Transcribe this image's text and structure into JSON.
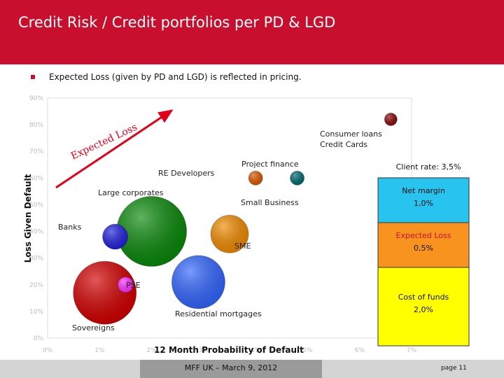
{
  "header": {
    "title": "Credit Risk / Credit portfolios per PD & LGD"
  },
  "bullet": "Expected Loss (given by PD and LGD) is reflected in pricing.",
  "footer": {
    "text": "MFF UK – March 9, 2012",
    "page": "page 11"
  },
  "colors": {
    "brand": "#c8102e",
    "net_margin": "#29c3f0",
    "expected_loss": "#f7931e",
    "cost_of_funds": "#ffff00"
  },
  "chart_data": {
    "type": "scatter",
    "xlabel": "12 Month Probability of Default",
    "ylabel": "Loss Given Default",
    "x_ticks": [
      "0%",
      "1%",
      "2%",
      "3%",
      "4%",
      "5%",
      "6%",
      "7%"
    ],
    "y_ticks": [
      "0%",
      "10%",
      "20%",
      "30%",
      "40%",
      "50%",
      "60%",
      "70%",
      "80%",
      "90%"
    ],
    "xlim": [
      0,
      7
    ],
    "ylim": [
      0,
      90
    ],
    "trend_label": "Expected Loss",
    "bubbles": [
      {
        "label": "Sovereigns",
        "x": 1.1,
        "y": 17,
        "size": 45,
        "color": "#d40000"
      },
      {
        "label": "PSE",
        "x": 1.5,
        "y": 20,
        "size": 11,
        "color": "#ff33ff"
      },
      {
        "label": "Banks",
        "x": 1.3,
        "y": 38,
        "size": 18,
        "color": "#2222dd"
      },
      {
        "label": "Large corporates",
        "x": 2.0,
        "y": 40,
        "size": 50,
        "color": "#0a8a0a"
      },
      {
        "label": "Residential mortgages",
        "x": 2.9,
        "y": 21,
        "size": 38,
        "color": "#3366ff"
      },
      {
        "label": "SME",
        "x": 3.5,
        "y": 39,
        "size": 27,
        "color": "#f28c00"
      },
      {
        "label": "RE Developers",
        "x": 4.0,
        "y": 60,
        "size": 10,
        "color": "#e05a00"
      },
      {
        "label": "Project finance",
        "x": 4.8,
        "y": 60,
        "size": 10,
        "color": "#006b70"
      },
      {
        "label": "Small Business",
        "x": 4.4,
        "y": 52,
        "size": 0,
        "color": "#888888"
      },
      {
        "label": "Consumer loans\nCredit Cards",
        "x": 6.6,
        "y": 82,
        "size": 9,
        "color": "#8b0a0a"
      }
    ],
    "pricing_stack": {
      "client_rate": "Client rate: 3,5%",
      "segments": [
        {
          "label": "Net margin",
          "value": "1,0%",
          "color": "#29c3f0"
        },
        {
          "label": "Expected Loss",
          "value": "0,5%",
          "color": "#f7931e"
        },
        {
          "label": "Cost of funds",
          "value": "2,0%",
          "color": "#ffff00"
        }
      ]
    }
  }
}
